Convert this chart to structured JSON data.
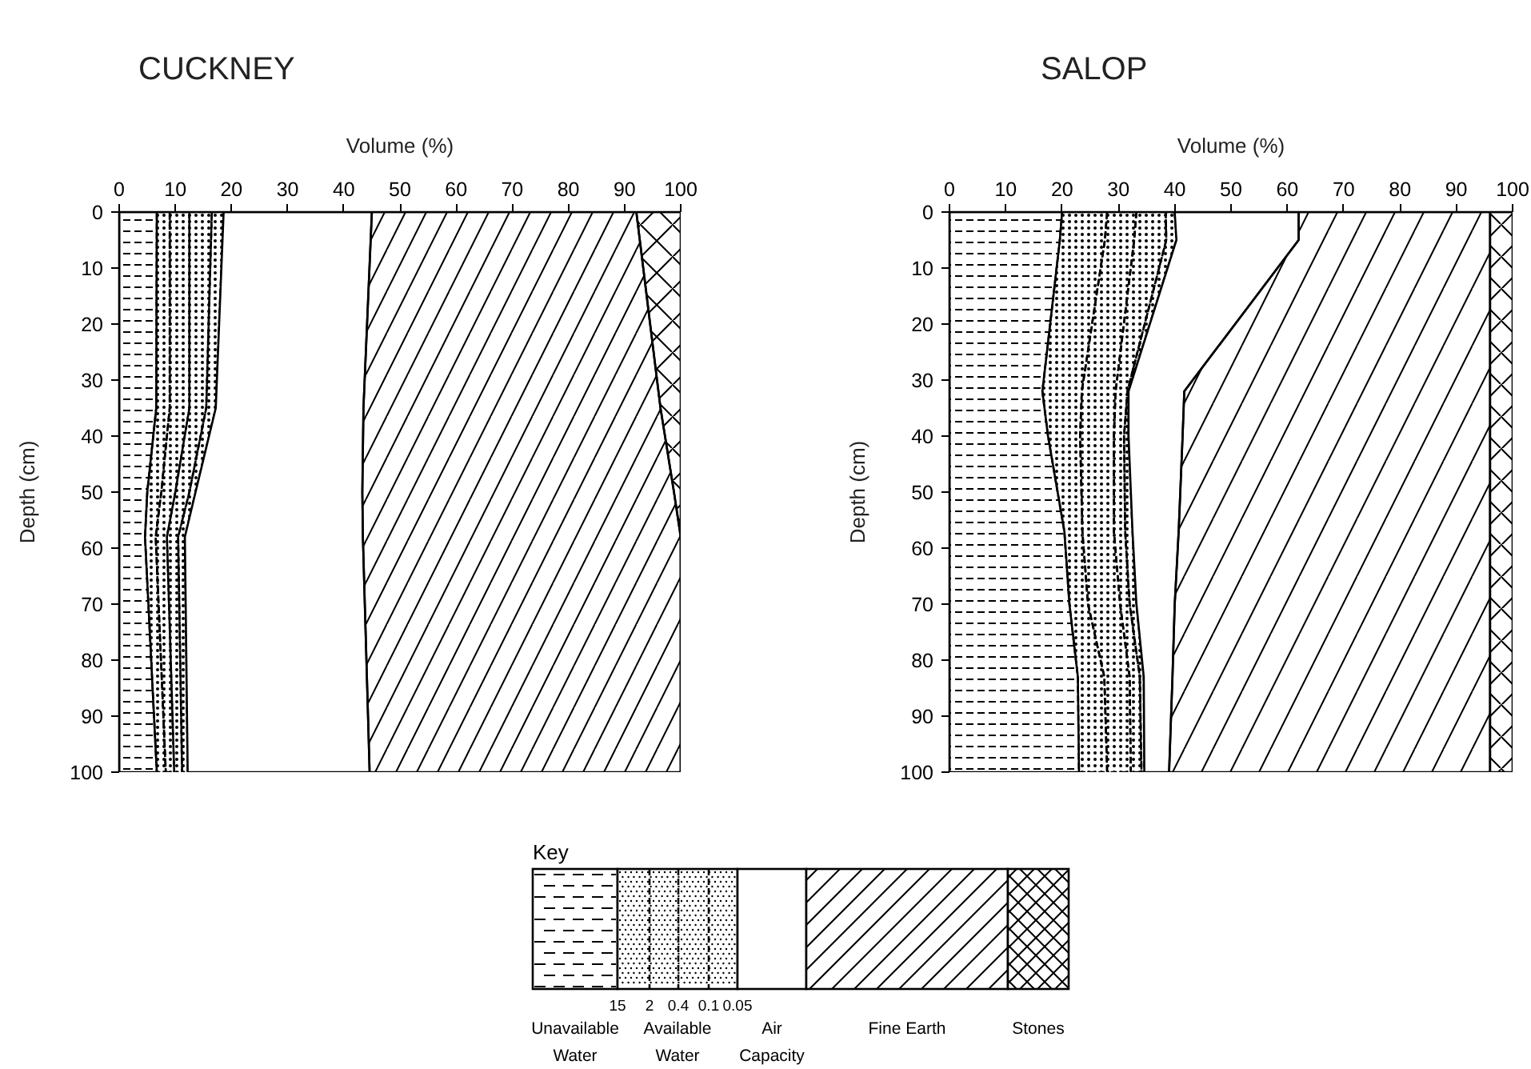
{
  "chart_data": [
    {
      "type": "area",
      "orientation": "horizontal",
      "stacked": true,
      "title": "CUCKNEY",
      "xlabel": "Volume (%)",
      "ylabel": "Depth (cm)",
      "x": [
        0,
        35,
        50,
        58,
        100
      ],
      "xlim": [
        0,
        100
      ],
      "xticks": [
        0,
        10,
        20,
        30,
        40,
        50,
        60,
        70,
        80,
        90,
        100
      ],
      "ylim": [
        100,
        0
      ],
      "yticks": [
        0,
        10,
        20,
        30,
        40,
        50,
        60,
        70,
        80,
        90,
        100
      ],
      "legend": "bottom",
      "legend_title": "Key",
      "annotations": [
        "15",
        "2",
        "0.4",
        "0.1",
        "0.05"
      ],
      "series": [
        {
          "name": "Unavailable Water",
          "color": "#000000",
          "values": [
            6.7,
            6.6,
            5.0,
            4.6,
            6.7
          ]
        },
        {
          "name": "Available Water",
          "color": "#000000",
          "line_style": "dashed",
          "values": [
            2.3,
            2.4,
            2.5,
            1.9,
            1.6
          ]
        },
        {
          "color": "#000000",
          "line_style": "dashed",
          "values": [
            3.5,
            3.5,
            2.5,
            2.0,
            1.5
          ]
        },
        {
          "color": "#000000",
          "line_style": "dashed",
          "values": [
            4.0,
            3.0,
            2.5,
            2.0,
            1.4
          ]
        },
        {
          "color": "#000000",
          "line_style": "dashed",
          "values": [
            2.1,
            1.7,
            1.1,
            1.2,
            1.0
          ]
        },
        {
          "name": "Air Capacity",
          "color": "#ffffff",
          "values": [
            26.4,
            26.3,
            29.7,
            31.7,
            32.4
          ]
        },
        {
          "name": "Fine Earth",
          "color": "#000000",
          "values": [
            47.1,
            52.9,
            55.5,
            56.6,
            55.4
          ]
        },
        {
          "name": "Stones",
          "color": "#000000",
          "values": [
            7.9,
            3.6,
            1.2,
            0,
            0
          ]
        }
      ]
    },
    {
      "type": "area",
      "orientation": "horizontal",
      "stacked": true,
      "title": "SALOP",
      "xlabel": "Volume (%)",
      "ylabel": "Depth (cm)",
      "x": [
        0,
        5,
        32,
        40,
        57,
        70,
        83,
        100
      ],
      "xlim": [
        0,
        100
      ],
      "xticks": [
        0,
        10,
        20,
        30,
        40,
        50,
        60,
        70,
        80,
        90,
        100
      ],
      "ylim": [
        100,
        0
      ],
      "yticks": [
        0,
        10,
        20,
        30,
        40,
        50,
        60,
        70,
        80,
        90,
        100
      ],
      "series": [
        {
          "color": "#000000",
          "values": [
            20,
            19.6,
            16.5,
            17.5,
            20.4,
            21.3,
            22.8,
            23
          ]
        },
        {
          "color": "#000000",
          "line_style": "dashed",
          "values": [
            8,
            8,
            7,
            5.7,
            3.2,
            3.3,
            4.7,
            5
          ]
        },
        {
          "color": "#000000",
          "line_style": "dashed",
          "values": [
            5.2,
            5.2,
            6,
            6,
            5.6,
            5.7,
            4.5,
            4.2
          ]
        },
        {
          "color": "#000000",
          "line_style": "dashed",
          "values": [
            5.2,
            5.7,
            2.1,
            1.8,
            2,
            1.7,
            1.8,
            1.9
          ]
        },
        {
          "color": "#000000",
          "line_style": "dashed",
          "values": [
            1.6,
            1.8,
            0.2,
            0.8,
            1.3,
            1.2,
            0.7,
            0.5
          ]
        },
        {
          "color": "#ffffff",
          "values": [
            22,
            21.7,
            9.9,
            9.6,
            8.2,
            6.8,
            5.1,
            4.4
          ]
        },
        {
          "color": "#000000",
          "values": [
            34,
            34,
            54.3,
            54.6,
            55.3,
            56,
            56.4,
            57
          ]
        },
        {
          "color": "#000000",
          "values": [
            4,
            4,
            4,
            4,
            4,
            4,
            4,
            4
          ]
        }
      ]
    }
  ]
}
